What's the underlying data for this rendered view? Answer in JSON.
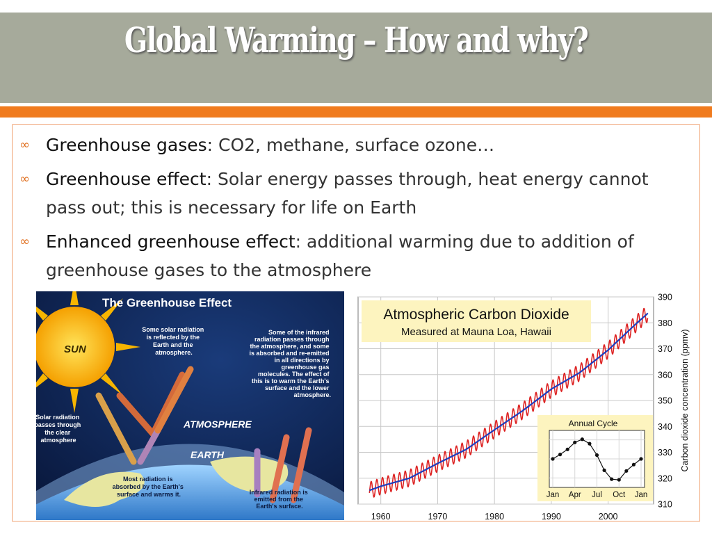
{
  "slide": {
    "title": "Global Warming – How and why?",
    "colors": {
      "title_band": "#a6aa9b",
      "accent_bar": "#f07b1e",
      "bullet_marker": "#e07020"
    }
  },
  "bullets": [
    {
      "icon": "infinity-bullet-icon",
      "term": "Greenhouse gases",
      "text": ": CO2, methane, surface ozone…"
    },
    {
      "icon": "infinity-bullet-icon",
      "term": "Greenhouse effect",
      "text": ": Solar energy passes through, heat energy cannot pass out; this is necessary for life on Earth"
    },
    {
      "icon": "infinity-bullet-icon",
      "term": "Enhanced greenhouse effect",
      "text": ": additional warming due to addition of greenhouse gases to the atmosphere"
    }
  ],
  "greenhouse_diagram": {
    "title": "The Greenhouse Effect",
    "sun": "SUN",
    "atmosphere": "ATMOSPHERE",
    "earth": "EARTH",
    "label_solar_in": [
      "Solar radiation",
      "passes through",
      "the clear",
      "atmosphere"
    ],
    "label_reflected": [
      "Some solar radiation",
      "is reflected by the",
      "Earth and the",
      "atmosphere."
    ],
    "label_infrared": [
      "Some of the infrared",
      "radiation passes through",
      "the atmosphere, and some",
      "is absorbed and re-emitted",
      "in all directions by",
      "greenhouse gas",
      "molecules. The effect of",
      "this is to warm the Earth's",
      "surface and the lower",
      "atmosphere."
    ],
    "label_absorbed": [
      "Most radiation is",
      "absorbed by the Earth's",
      "surface and warms it."
    ],
    "label_emitted": [
      "Infrared radiation is",
      "emitted from the",
      "Earth's surface."
    ]
  },
  "chart_data": [
    {
      "type": "line",
      "title": "Atmospheric Carbon Dioxide",
      "subtitle": "Measured at Mauna Loa, Hawaii",
      "ylabel": "Carbon dioxide concentration (ppmv)",
      "xlim": [
        1956,
        2008
      ],
      "ylim": [
        310,
        390
      ],
      "x_ticks": [
        "1960",
        "1970",
        "1980",
        "1990",
        "2000"
      ],
      "y_ticks": [
        "310",
        "320",
        "330",
        "340",
        "350",
        "360",
        "370",
        "380",
        "390"
      ],
      "grid": true,
      "series": [
        {
          "color": "#1f3fbf",
          "style": "annual-mean",
          "x": [
            1958,
            1960,
            1965,
            1970,
            1975,
            1980,
            1985,
            1990,
            1995,
            2000,
            2005,
            2007
          ],
          "y": [
            315.3,
            316.9,
            320.0,
            325.7,
            331.1,
            338.7,
            346.1,
            354.4,
            360.8,
            369.5,
            379.8,
            383.7
          ]
        },
        {
          "color": "#dd2222",
          "style": "monthly",
          "seasonal_amplitude_ppmv": 3.2
        }
      ]
    },
    {
      "type": "line",
      "title": "Annual Cycle",
      "x": [
        "Jan",
        "Feb",
        "Mar",
        "Apr",
        "May",
        "Jun",
        "Jul",
        "Aug",
        "Sep",
        "Oct",
        "Nov",
        "Dec",
        "Jan"
      ],
      "x_ticks": [
        "Jan",
        "Apr",
        "Jul",
        "Oct",
        "Jan"
      ],
      "y": [
        0.0,
        0.7,
        1.5,
        2.6,
        3.1,
        2.4,
        0.6,
        -1.8,
        -3.2,
        -3.3,
        -1.9,
        -0.9,
        0.0
      ],
      "ylim": [
        -4.5,
        4.5
      ],
      "grid": true
    }
  ]
}
